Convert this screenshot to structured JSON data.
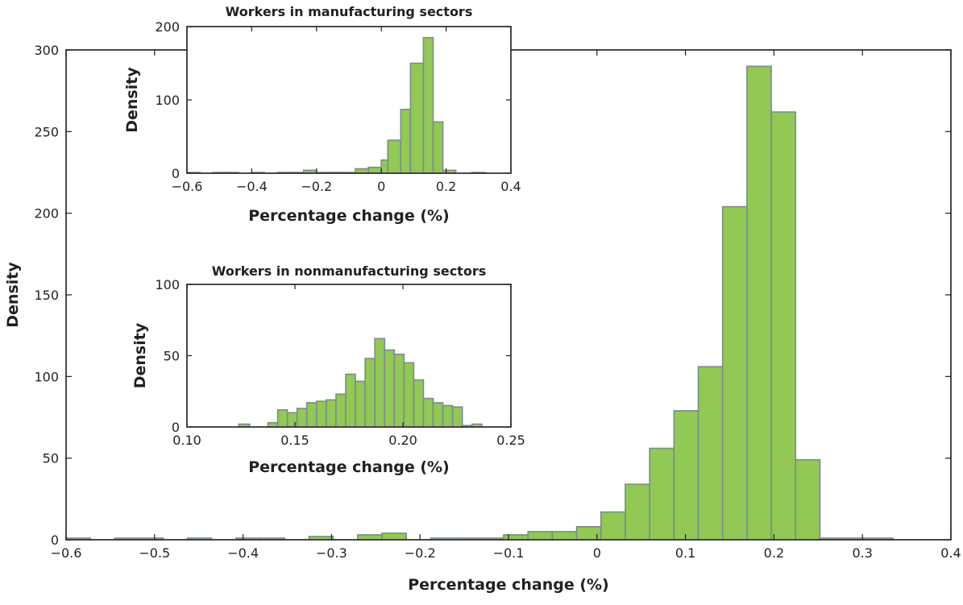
{
  "chart_data": [
    {
      "id": "main",
      "type": "bar",
      "title": "",
      "xlabel": "Percentage change (%)",
      "ylabel": "Density",
      "xlim": [
        -0.6,
        0.4
      ],
      "ylim": [
        0,
        300
      ],
      "xticks": [
        -0.6,
        -0.5,
        -0.4,
        -0.3,
        -0.2,
        -0.1,
        0,
        0.1,
        0.2,
        0.3,
        0.4
      ],
      "xtick_labels": [
        "−0.6",
        "−0.5",
        "−0.4",
        "−0.3",
        "−0.2",
        "−0.1",
        "0",
        "0.1",
        "0.2",
        "0.3",
        "0.4"
      ],
      "yticks": [
        0,
        50,
        100,
        150,
        200,
        250,
        300
      ],
      "ytick_labels": [
        "0",
        "50",
        "100",
        "150",
        "200",
        "250",
        "300"
      ],
      "bin_width": 0.0275,
      "bins": [
        {
          "x0": -0.6,
          "x1": -0.5725,
          "value": 1
        },
        {
          "x0": -0.545,
          "x1": -0.5175,
          "value": 1
        },
        {
          "x0": -0.5175,
          "x1": -0.49,
          "value": 1
        },
        {
          "x0": -0.463,
          "x1": -0.4355,
          "value": 1
        },
        {
          "x0": -0.408,
          "x1": -0.3805,
          "value": 1
        },
        {
          "x0": -0.3805,
          "x1": -0.353,
          "value": 1
        },
        {
          "x0": -0.3255,
          "x1": -0.298,
          "value": 2
        },
        {
          "x0": -0.2705,
          "x1": -0.243,
          "value": 3
        },
        {
          "x0": -0.243,
          "x1": -0.2155,
          "value": 4
        },
        {
          "x0": -0.188,
          "x1": -0.1605,
          "value": 1
        },
        {
          "x0": -0.1605,
          "x1": -0.133,
          "value": 1
        },
        {
          "x0": -0.133,
          "x1": -0.1055,
          "value": 1
        },
        {
          "x0": -0.1055,
          "x1": -0.078,
          "value": 3
        },
        {
          "x0": -0.078,
          "x1": -0.0505,
          "value": 5
        },
        {
          "x0": -0.0505,
          "x1": -0.023,
          "value": 5
        },
        {
          "x0": -0.023,
          "x1": 0.0045,
          "value": 8
        },
        {
          "x0": 0.0045,
          "x1": 0.032,
          "value": 17
        },
        {
          "x0": 0.032,
          "x1": 0.0595,
          "value": 34
        },
        {
          "x0": 0.0595,
          "x1": 0.087,
          "value": 56
        },
        {
          "x0": 0.087,
          "x1": 0.1145,
          "value": 79
        },
        {
          "x0": 0.1145,
          "x1": 0.142,
          "value": 106
        },
        {
          "x0": 0.142,
          "x1": 0.1695,
          "value": 204
        },
        {
          "x0": 0.1695,
          "x1": 0.197,
          "value": 290
        },
        {
          "x0": 0.197,
          "x1": 0.2245,
          "value": 262
        },
        {
          "x0": 0.2245,
          "x1": 0.252,
          "value": 49
        },
        {
          "x0": 0.252,
          "x1": 0.2795,
          "value": 1
        },
        {
          "x0": 0.2795,
          "x1": 0.307,
          "value": 1
        },
        {
          "x0": 0.307,
          "x1": 0.3345,
          "value": 1
        }
      ],
      "bar_color": "#92c854",
      "edge_color": "#7d8a92"
    },
    {
      "id": "inset-manufacturing",
      "type": "bar",
      "title": "Workers in manufacturing sectors",
      "xlabel": "Percentage change (%)",
      "ylabel": "Density",
      "xlim": [
        -0.6,
        0.4
      ],
      "ylim": [
        0,
        200
      ],
      "xticks": [
        -0.6,
        -0.4,
        -0.2,
        0,
        0.2,
        0.4
      ],
      "xtick_labels": [
        "−0.6",
        "−0.4",
        "−0.2",
        "0",
        "0.2",
        "0.4"
      ],
      "yticks": [
        0,
        100,
        200
      ],
      "ytick_labels": [
        "0",
        "100",
        "200"
      ],
      "bins": [
        {
          "x0": -0.6,
          "x1": -0.56,
          "value": 1
        },
        {
          "x0": -0.52,
          "x1": -0.48,
          "value": 1
        },
        {
          "x0": -0.48,
          "x1": -0.44,
          "value": 1
        },
        {
          "x0": -0.4,
          "x1": -0.36,
          "value": 1
        },
        {
          "x0": -0.32,
          "x1": -0.28,
          "value": 1
        },
        {
          "x0": -0.28,
          "x1": -0.24,
          "value": 1
        },
        {
          "x0": -0.24,
          "x1": -0.2,
          "value": 4
        },
        {
          "x0": -0.2,
          "x1": -0.16,
          "value": 1
        },
        {
          "x0": -0.16,
          "x1": -0.12,
          "value": 1
        },
        {
          "x0": -0.12,
          "x1": -0.08,
          "value": 1
        },
        {
          "x0": -0.08,
          "x1": -0.04,
          "value": 6
        },
        {
          "x0": -0.04,
          "x1": 0.0,
          "value": 8
        },
        {
          "x0": 0.0,
          "x1": 0.02,
          "value": 18
        },
        {
          "x0": 0.02,
          "x1": 0.06,
          "value": 45
        },
        {
          "x0": 0.06,
          "x1": 0.09,
          "value": 87
        },
        {
          "x0": 0.09,
          "x1": 0.13,
          "value": 150
        },
        {
          "x0": 0.13,
          "x1": 0.16,
          "value": 185
        },
        {
          "x0": 0.16,
          "x1": 0.19,
          "value": 70
        },
        {
          "x0": 0.19,
          "x1": 0.23,
          "value": 4
        },
        {
          "x0": 0.28,
          "x1": 0.32,
          "value": 1
        }
      ],
      "bar_color": "#92c854",
      "edge_color": "#7d8a92"
    },
    {
      "id": "inset-nonmanufacturing",
      "type": "bar",
      "title": "Workers in nonmanufacturing sectors",
      "xlabel": "Percentage change (%)",
      "ylabel": "Density",
      "xlim": [
        0.1,
        0.25
      ],
      "ylim": [
        0,
        100
      ],
      "xticks": [
        0.1,
        0.15,
        0.2,
        0.25
      ],
      "xtick_labels": [
        "0.10",
        "0.15",
        "0.20",
        "0.25"
      ],
      "yticks": [
        0,
        50,
        100
      ],
      "ytick_labels": [
        "0",
        "50",
        "100"
      ],
      "bins": [
        {
          "x0": 0.124,
          "x1": 0.129,
          "value": 2
        },
        {
          "x0": 0.1375,
          "x1": 0.142,
          "value": 3
        },
        {
          "x0": 0.142,
          "x1": 0.1465,
          "value": 12
        },
        {
          "x0": 0.1465,
          "x1": 0.151,
          "value": 10
        },
        {
          "x0": 0.151,
          "x1": 0.1555,
          "value": 13
        },
        {
          "x0": 0.1555,
          "x1": 0.16,
          "value": 17
        },
        {
          "x0": 0.16,
          "x1": 0.1645,
          "value": 18
        },
        {
          "x0": 0.1645,
          "x1": 0.169,
          "value": 19
        },
        {
          "x0": 0.169,
          "x1": 0.1735,
          "value": 23
        },
        {
          "x0": 0.1735,
          "x1": 0.178,
          "value": 37
        },
        {
          "x0": 0.178,
          "x1": 0.1825,
          "value": 32
        },
        {
          "x0": 0.1825,
          "x1": 0.187,
          "value": 48
        },
        {
          "x0": 0.187,
          "x1": 0.1915,
          "value": 62
        },
        {
          "x0": 0.1915,
          "x1": 0.196,
          "value": 54
        },
        {
          "x0": 0.196,
          "x1": 0.2005,
          "value": 51
        },
        {
          "x0": 0.2005,
          "x1": 0.205,
          "value": 45
        },
        {
          "x0": 0.205,
          "x1": 0.2095,
          "value": 33
        },
        {
          "x0": 0.2095,
          "x1": 0.214,
          "value": 20
        },
        {
          "x0": 0.214,
          "x1": 0.2185,
          "value": 17
        },
        {
          "x0": 0.2185,
          "x1": 0.223,
          "value": 15
        },
        {
          "x0": 0.223,
          "x1": 0.2275,
          "value": 14
        },
        {
          "x0": 0.2275,
          "x1": 0.232,
          "value": 1
        },
        {
          "x0": 0.232,
          "x1": 0.2365,
          "value": 2
        }
      ],
      "bar_color": "#92c854",
      "edge_color": "#7d8a92"
    }
  ]
}
